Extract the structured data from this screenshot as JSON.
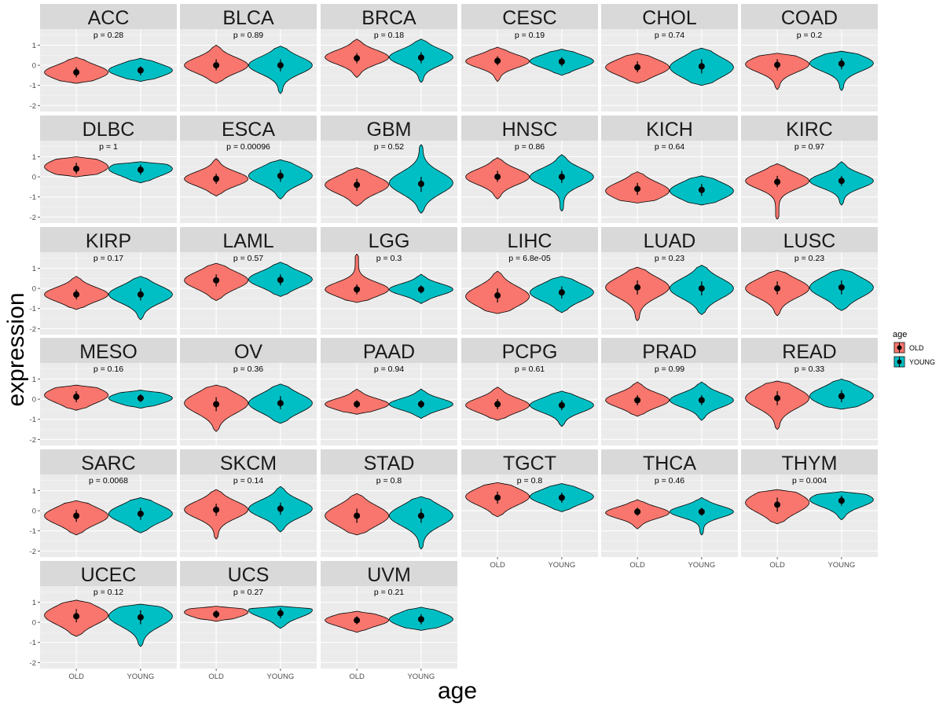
{
  "chart_data": {
    "type": "violin",
    "xlabel": "age",
    "ylabel": "expression",
    "categories": [
      "OLD",
      "YOUNG"
    ],
    "ylim": [
      -2.3,
      1.8
    ],
    "yticks": [
      -2,
      -1,
      0,
      1
    ],
    "grid": true,
    "legend": {
      "title": "age",
      "position": "right",
      "entries": [
        {
          "label": "OLD",
          "color": "#F8766D"
        },
        {
          "label": "YOUNG",
          "color": "#00BFC4"
        }
      ]
    },
    "facets": [
      {
        "name": "ACC",
        "p": "p = 0.28",
        "old": {
          "median": -0.35,
          "q1": -0.6,
          "q3": -0.1,
          "min": -0.9,
          "max": 0.4,
          "peak": -0.35
        },
        "young": {
          "median": -0.25,
          "q1": -0.5,
          "q3": -0.05,
          "min": -0.8,
          "max": 0.35,
          "peak": -0.25
        }
      },
      {
        "name": "BLCA",
        "p": "p = 0.89",
        "old": {
          "median": 0.0,
          "q1": -0.25,
          "q3": 0.3,
          "min": -0.9,
          "max": 1.0,
          "peak": 0.0
        },
        "young": {
          "median": 0.0,
          "q1": -0.3,
          "q3": 0.3,
          "min": -1.4,
          "max": 0.95,
          "peak": 0.0
        }
      },
      {
        "name": "BRCA",
        "p": "p = 0.18",
        "old": {
          "median": 0.35,
          "q1": 0.1,
          "q3": 0.6,
          "min": -0.6,
          "max": 1.3,
          "peak": 0.4
        },
        "young": {
          "median": 0.38,
          "q1": 0.1,
          "q3": 0.65,
          "min": -0.85,
          "max": 1.3,
          "peak": 0.4
        }
      },
      {
        "name": "CESC",
        "p": "p = 0.19",
        "old": {
          "median": 0.22,
          "q1": 0.0,
          "q3": 0.45,
          "min": -0.8,
          "max": 0.9,
          "peak": 0.2
        },
        "young": {
          "median": 0.18,
          "q1": -0.05,
          "q3": 0.4,
          "min": -0.5,
          "max": 0.8,
          "peak": 0.2
        }
      },
      {
        "name": "CHOL",
        "p": "p = 0.74",
        "old": {
          "median": -0.1,
          "q1": -0.35,
          "q3": 0.2,
          "min": -0.9,
          "max": 0.6,
          "peak": -0.1
        },
        "young": {
          "median": -0.05,
          "q1": -0.4,
          "q3": 0.3,
          "min": -1.0,
          "max": 0.85,
          "peak": -0.1
        }
      },
      {
        "name": "COAD",
        "p": "p = 0.2",
        "old": {
          "median": 0.02,
          "q1": -0.25,
          "q3": 0.3,
          "min": -1.2,
          "max": 0.6,
          "peak": 0.05
        },
        "young": {
          "median": 0.08,
          "q1": -0.2,
          "q3": 0.35,
          "min": -1.25,
          "max": 0.7,
          "peak": 0.1
        }
      },
      {
        "name": "DLBC",
        "p": "p = 1",
        "old": {
          "median": 0.4,
          "q1": 0.15,
          "q3": 0.7,
          "min": 0.0,
          "max": 1.0,
          "peak": 0.5
        },
        "young": {
          "median": 0.35,
          "q1": 0.1,
          "q3": 0.6,
          "min": -0.3,
          "max": 0.75,
          "peak": 0.4
        }
      },
      {
        "name": "ESCA",
        "p": "p = 0.00096",
        "old": {
          "median": -0.1,
          "q1": -0.35,
          "q3": 0.15,
          "min": -0.95,
          "max": 0.9,
          "peak": -0.1
        },
        "young": {
          "median": 0.05,
          "q1": -0.25,
          "q3": 0.35,
          "min": -1.1,
          "max": 0.85,
          "peak": 0.05
        }
      },
      {
        "name": "GBM",
        "p": "p = 0.52",
        "old": {
          "median": -0.4,
          "q1": -0.7,
          "q3": -0.1,
          "min": -1.45,
          "max": 0.45,
          "peak": -0.4
        },
        "young": {
          "median": -0.35,
          "q1": -0.75,
          "q3": 0.0,
          "min": -1.8,
          "max": 1.6,
          "peak": -0.3
        }
      },
      {
        "name": "HNSC",
        "p": "p = 0.86",
        "old": {
          "median": 0.0,
          "q1": -0.25,
          "q3": 0.3,
          "min": -1.1,
          "max": 0.95,
          "peak": 0.0
        },
        "young": {
          "median": 0.0,
          "q1": -0.3,
          "q3": 0.3,
          "min": -1.7,
          "max": 1.1,
          "peak": 0.0
        }
      },
      {
        "name": "KICH",
        "p": "p = 0.64",
        "old": {
          "median": -0.6,
          "q1": -0.9,
          "q3": -0.3,
          "min": -1.3,
          "max": 0.25,
          "peak": -0.7
        },
        "young": {
          "median": -0.65,
          "q1": -0.95,
          "q3": -0.35,
          "min": -1.4,
          "max": 0.05,
          "peak": -0.7
        }
      },
      {
        "name": "KIRC",
        "p": "p = 0.97",
        "old": {
          "median": -0.25,
          "q1": -0.5,
          "q3": 0.05,
          "min": -2.1,
          "max": 0.65,
          "peak": -0.2
        },
        "young": {
          "median": -0.2,
          "q1": -0.45,
          "q3": 0.05,
          "min": -1.4,
          "max": 0.75,
          "peak": -0.2
        }
      },
      {
        "name": "KIRP",
        "p": "p = 0.17",
        "old": {
          "median": -0.3,
          "q1": -0.55,
          "q3": -0.05,
          "min": -1.05,
          "max": 0.6,
          "peak": -0.3
        },
        "young": {
          "median": -0.3,
          "q1": -0.6,
          "q3": 0.0,
          "min": -1.55,
          "max": 0.6,
          "peak": -0.3
        }
      },
      {
        "name": "LAML",
        "p": "p = 0.57",
        "old": {
          "median": 0.4,
          "q1": 0.1,
          "q3": 0.7,
          "min": -0.6,
          "max": 1.25,
          "peak": 0.4
        },
        "young": {
          "median": 0.42,
          "q1": 0.15,
          "q3": 0.7,
          "min": -0.4,
          "max": 1.3,
          "peak": 0.45
        }
      },
      {
        "name": "LGG",
        "p": "p = 0.3",
        "old": {
          "median": -0.05,
          "q1": -0.3,
          "q3": 0.2,
          "min": -0.7,
          "max": 1.7,
          "peak": -0.05
        },
        "young": {
          "median": -0.05,
          "q1": -0.25,
          "q3": 0.15,
          "min": -0.75,
          "max": 0.7,
          "peak": -0.05
        }
      },
      {
        "name": "LIHC",
        "p": "p = 6.8e-05",
        "old": {
          "median": -0.35,
          "q1": -0.7,
          "q3": 0.0,
          "min": -1.25,
          "max": 0.85,
          "peak": -0.4
        },
        "young": {
          "median": -0.2,
          "q1": -0.5,
          "q3": 0.1,
          "min": -1.2,
          "max": 0.6,
          "peak": -0.2
        }
      },
      {
        "name": "LUAD",
        "p": "p = 0.23",
        "old": {
          "median": 0.05,
          "q1": -0.3,
          "q3": 0.4,
          "min": -1.6,
          "max": 1.05,
          "peak": 0.05
        },
        "young": {
          "median": 0.0,
          "q1": -0.35,
          "q3": 0.35,
          "min": -1.3,
          "max": 1.15,
          "peak": 0.0
        }
      },
      {
        "name": "LUSC",
        "p": "p = 0.23",
        "old": {
          "median": 0.0,
          "q1": -0.3,
          "q3": 0.35,
          "min": -1.35,
          "max": 0.9,
          "peak": 0.0
        },
        "young": {
          "median": 0.05,
          "q1": -0.3,
          "q3": 0.4,
          "min": -1.1,
          "max": 0.95,
          "peak": 0.05
        }
      },
      {
        "name": "MESO",
        "p": "p = 0.16",
        "old": {
          "median": 0.12,
          "q1": -0.15,
          "q3": 0.4,
          "min": -0.55,
          "max": 0.7,
          "peak": 0.2
        },
        "young": {
          "median": 0.05,
          "q1": -0.15,
          "q3": 0.25,
          "min": -0.45,
          "max": 0.45,
          "peak": 0.05
        }
      },
      {
        "name": "OV",
        "p": "p = 0.36",
        "old": {
          "median": -0.25,
          "q1": -0.6,
          "q3": 0.1,
          "min": -1.6,
          "max": 0.7,
          "peak": -0.2
        },
        "young": {
          "median": -0.2,
          "q1": -0.5,
          "q3": 0.15,
          "min": -1.2,
          "max": 0.75,
          "peak": -0.2
        }
      },
      {
        "name": "PAAD",
        "p": "p = 0.94",
        "old": {
          "median": -0.25,
          "q1": -0.45,
          "q3": -0.05,
          "min": -0.75,
          "max": 0.5,
          "peak": -0.25
        },
        "young": {
          "median": -0.25,
          "q1": -0.45,
          "q3": -0.05,
          "min": -0.95,
          "max": 0.5,
          "peak": -0.25
        }
      },
      {
        "name": "PCPG",
        "p": "p = 0.61",
        "old": {
          "median": -0.25,
          "q1": -0.5,
          "q3": 0.0,
          "min": -1.05,
          "max": 0.6,
          "peak": -0.3
        },
        "young": {
          "median": -0.3,
          "q1": -0.55,
          "q3": -0.05,
          "min": -1.35,
          "max": 0.4,
          "peak": -0.3
        }
      },
      {
        "name": "PRAD",
        "p": "p = 0.99",
        "old": {
          "median": -0.05,
          "q1": -0.3,
          "q3": 0.2,
          "min": -0.85,
          "max": 0.85,
          "peak": -0.05
        },
        "young": {
          "median": -0.05,
          "q1": -0.3,
          "q3": 0.2,
          "min": -1.05,
          "max": 0.85,
          "peak": -0.05
        }
      },
      {
        "name": "READ",
        "p": "p = 0.33",
        "old": {
          "median": 0.05,
          "q1": -0.3,
          "q3": 0.4,
          "min": -1.5,
          "max": 0.9,
          "peak": 0.05
        },
        "young": {
          "median": 0.15,
          "q1": -0.15,
          "q3": 0.45,
          "min": -0.5,
          "max": 1.0,
          "peak": 0.15
        }
      },
      {
        "name": "SARC",
        "p": "p = 0.0068",
        "old": {
          "median": -0.25,
          "q1": -0.55,
          "q3": 0.05,
          "min": -1.2,
          "max": 0.5,
          "peak": -0.25
        },
        "young": {
          "median": -0.15,
          "q1": -0.45,
          "q3": 0.15,
          "min": -1.1,
          "max": 0.65,
          "peak": -0.15
        }
      },
      {
        "name": "SKCM",
        "p": "p = 0.14",
        "old": {
          "median": 0.05,
          "q1": -0.25,
          "q3": 0.35,
          "min": -1.4,
          "max": 1.05,
          "peak": 0.05
        },
        "young": {
          "median": 0.1,
          "q1": -0.2,
          "q3": 0.4,
          "min": -1.05,
          "max": 1.2,
          "peak": 0.1
        }
      },
      {
        "name": "STAD",
        "p": "p = 0.8",
        "old": {
          "median": -0.25,
          "q1": -0.6,
          "q3": 0.1,
          "min": -1.2,
          "max": 0.85,
          "peak": -0.25
        },
        "young": {
          "median": -0.25,
          "q1": -0.6,
          "q3": 0.1,
          "min": -1.9,
          "max": 0.7,
          "peak": -0.25
        }
      },
      {
        "name": "TGCT",
        "p": "p = 0.8",
        "old": {
          "median": 0.65,
          "q1": 0.35,
          "q3": 0.95,
          "min": -0.3,
          "max": 1.4,
          "peak": 0.7
        },
        "young": {
          "median": 0.65,
          "q1": 0.4,
          "q3": 0.9,
          "min": -0.05,
          "max": 1.35,
          "peak": 0.7
        }
      },
      {
        "name": "THCA",
        "p": "p = 0.46",
        "old": {
          "median": -0.05,
          "q1": -0.25,
          "q3": 0.15,
          "min": -0.9,
          "max": 0.55,
          "peak": -0.1
        },
        "young": {
          "median": -0.05,
          "q1": -0.25,
          "q3": 0.15,
          "min": -1.2,
          "max": 0.65,
          "peak": -0.05
        }
      },
      {
        "name": "THYM",
        "p": "p = 0.004",
        "old": {
          "median": 0.3,
          "q1": -0.05,
          "q3": 0.65,
          "min": -0.65,
          "max": 1.05,
          "peak": 0.4
        },
        "young": {
          "median": 0.5,
          "q1": 0.25,
          "q3": 0.75,
          "min": -0.45,
          "max": 0.95,
          "peak": 0.55
        }
      },
      {
        "name": "UCEC",
        "p": "p = 0.12",
        "old": {
          "median": 0.3,
          "q1": 0.0,
          "q3": 0.65,
          "min": -0.7,
          "max": 1.1,
          "peak": 0.35
        },
        "young": {
          "median": 0.25,
          "q1": -0.1,
          "q3": 0.6,
          "min": -1.2,
          "max": 0.9,
          "peak": 0.3
        }
      },
      {
        "name": "UCS",
        "p": "p = 0.27",
        "old": {
          "median": 0.4,
          "q1": 0.2,
          "q3": 0.6,
          "min": 0.05,
          "max": 0.8,
          "peak": 0.5
        },
        "young": {
          "median": 0.45,
          "q1": 0.2,
          "q3": 0.7,
          "min": -0.3,
          "max": 0.8,
          "peak": 0.6
        }
      },
      {
        "name": "UVM",
        "p": "p = 0.21",
        "old": {
          "median": 0.1,
          "q1": -0.1,
          "q3": 0.3,
          "min": -0.5,
          "max": 0.55,
          "peak": 0.1
        },
        "young": {
          "median": 0.15,
          "q1": -0.1,
          "q3": 0.4,
          "min": -0.4,
          "max": 0.75,
          "peak": 0.15
        }
      }
    ]
  }
}
